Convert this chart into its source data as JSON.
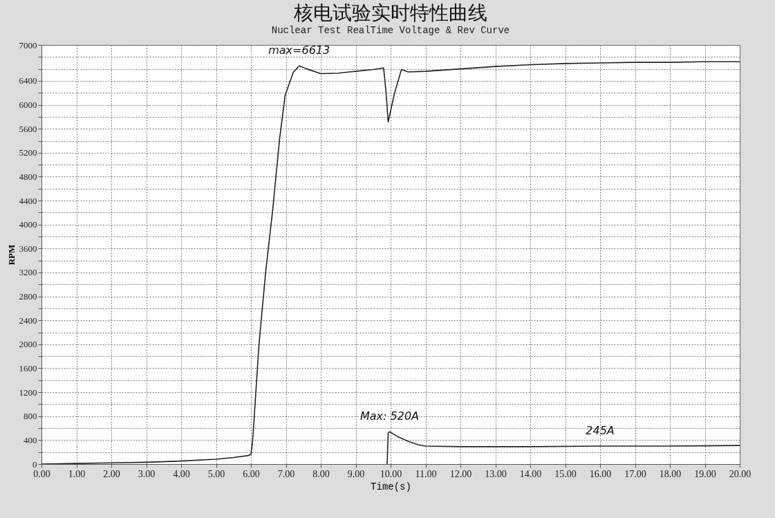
{
  "chart_data": {
    "type": "line",
    "title": "核电试验实时特性曲线",
    "subtitle": "Nuclear Test RealTime Voltage & Rev Curve",
    "xlabel": "Time(s)",
    "ylabel": "RPM",
    "xlim": [
      0,
      20
    ],
    "ylim": [
      0,
      7000
    ],
    "xticks": [
      {
        "value": 0,
        "label": "0.00"
      },
      {
        "value": 1,
        "label": "1.00"
      },
      {
        "value": 2,
        "label": "2.00"
      },
      {
        "value": 3,
        "label": "3.00"
      },
      {
        "value": 4,
        "label": "4.00"
      },
      {
        "value": 5,
        "label": "5.00"
      },
      {
        "value": 6,
        "label": "6.00"
      },
      {
        "value": 7,
        "label": "7.00"
      },
      {
        "value": 8,
        "label": "8.00"
      },
      {
        "value": 9,
        "label": "9.00"
      },
      {
        "value": 10,
        "label": "10.00"
      },
      {
        "value": 11,
        "label": "11.00"
      },
      {
        "value": 12,
        "label": "12.00"
      },
      {
        "value": 13,
        "label": "13.00"
      },
      {
        "value": 14,
        "label": "14.00"
      },
      {
        "value": 15,
        "label": "15.00"
      },
      {
        "value": 16,
        "label": "16.00"
      },
      {
        "value": 17,
        "label": "17.00"
      },
      {
        "value": 18,
        "label": "18.00"
      },
      {
        "value": 19,
        "label": "19.00"
      },
      {
        "value": 20,
        "label": "20.00"
      }
    ],
    "yticks": [
      0,
      {
        "value": 200,
        "label": null
      },
      400,
      {
        "value": 600,
        "label": null
      },
      800,
      {
        "value": 1000,
        "label": null
      },
      1200,
      {
        "value": 1400,
        "label": null
      },
      1600,
      {
        "value": 1800,
        "label": null
      },
      2000,
      {
        "value": 2200,
        "label": null
      },
      2400,
      {
        "value": 2600,
        "label": null
      },
      2800,
      {
        "value": 3000,
        "label": null
      },
      3200,
      {
        "value": 3400,
        "label": null
      },
      3600,
      {
        "value": 3800,
        "label": null
      },
      4000,
      {
        "value": 4200,
        "label": null
      },
      4400,
      {
        "value": 4600,
        "label": null
      },
      4800,
      {
        "value": 5000,
        "label": null
      },
      5200,
      {
        "value": 5400,
        "label": null
      },
      5600,
      {
        "value": 5800,
        "label": null
      },
      6000,
      {
        "value": 6200,
        "label": null
      },
      6400,
      {
        "value": 6600,
        "label": null
      },
      {
        "value": 6800,
        "label": null
      },
      7000
    ],
    "grid": true,
    "series": [
      {
        "color": "#222222",
        "x": [
          0,
          1,
          2,
          3,
          4,
          5,
          5.5,
          5.9,
          6,
          6.05,
          6.23,
          6.42,
          6.62,
          6.82,
          6.98,
          7.21,
          7.38,
          7.6,
          8,
          8.5,
          9,
          9.5,
          9.8,
          9.87,
          9.93,
          10,
          10.11,
          10.31,
          10.5,
          11,
          12,
          13,
          14,
          15,
          16,
          17,
          18,
          19,
          20
        ],
        "values": [
          0,
          10,
          20,
          30,
          50,
          80,
          110,
          140,
          160,
          400,
          2000,
          3200,
          4230,
          5430,
          6160,
          6540,
          6650,
          6600,
          6520,
          6530,
          6560,
          6590,
          6615,
          6200,
          5715,
          5900,
          6190,
          6590,
          6550,
          6560,
          6600,
          6640,
          6670,
          6690,
          6700,
          6710,
          6710,
          6720,
          6720
        ]
      },
      {
        "color": "#222222",
        "x": [
          9.9,
          9.93,
          9.97,
          10.2,
          10.5,
          10.8,
          11,
          12,
          14,
          16,
          18,
          20
        ],
        "values": [
          0,
          520,
          540,
          460,
          380,
          320,
          300,
          290,
          290,
          300,
          300,
          310
        ]
      }
    ],
    "annotations": [
      {
        "text": "max=6613",
        "x": 7.38,
        "y": 6650
      },
      {
        "text": "Max: 520A",
        "x": 9.97,
        "y": 540
      },
      {
        "text": "245A",
        "x": 16,
        "y": 295
      }
    ]
  }
}
